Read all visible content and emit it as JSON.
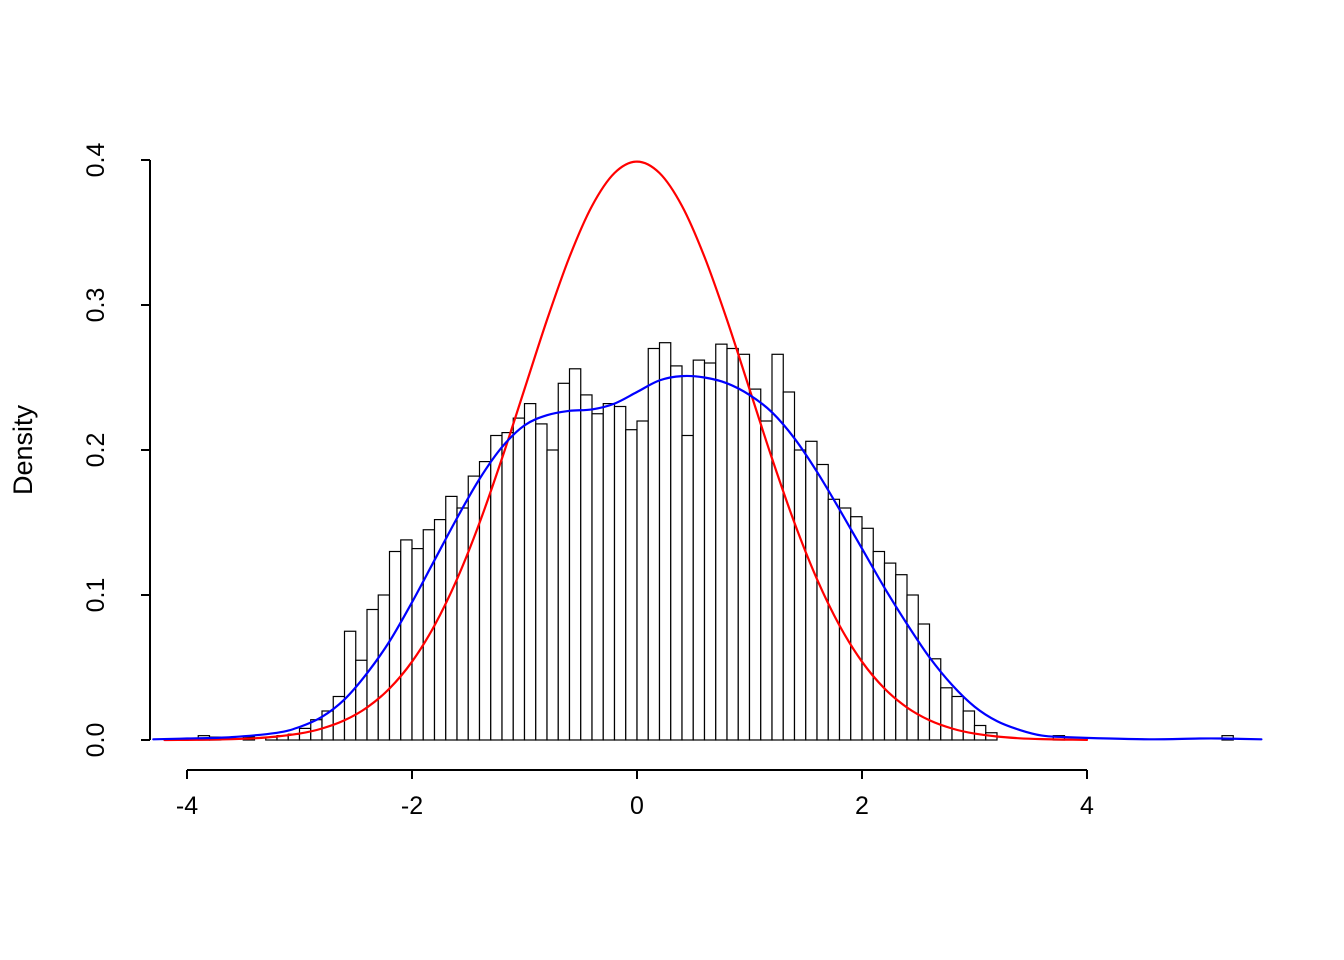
{
  "figure": {
    "background": "#ffffff"
  },
  "chart_data": {
    "type": "histogram+line",
    "title": "",
    "xlabel": "",
    "ylabel": "Density",
    "xlim": [
      -4.35,
      5.6
    ],
    "ylim": [
      0,
      0.4
    ],
    "grid": false,
    "legend": "none",
    "x_ticks": [
      -4,
      -2,
      0,
      2,
      4
    ],
    "x_tick_labels": [
      "-4",
      "-2",
      "0",
      "2",
      "4"
    ],
    "y_ticks": [
      0.0,
      0.1,
      0.2,
      0.3,
      0.4
    ],
    "y_tick_labels": [
      "0.0",
      "0.1",
      "0.2",
      "0.3",
      "0.4"
    ],
    "bin_width": 0.1,
    "histogram": {
      "name": "sample-histogram",
      "bar_fill": "#ffffff",
      "bar_stroke": "#000000",
      "bins": [
        [
          -3.9,
          0.003
        ],
        [
          -3.8,
          0.002
        ],
        [
          -3.5,
          0.002
        ],
        [
          -3.3,
          0.002
        ],
        [
          -3.2,
          0.003
        ],
        [
          -3.1,
          0.004
        ],
        [
          -3.0,
          0.008
        ],
        [
          -2.9,
          0.014
        ],
        [
          -2.8,
          0.02
        ],
        [
          -2.7,
          0.03
        ],
        [
          -2.6,
          0.075
        ],
        [
          -2.5,
          0.055
        ],
        [
          -2.4,
          0.09
        ],
        [
          -2.3,
          0.1
        ],
        [
          -2.2,
          0.13
        ],
        [
          -2.1,
          0.138
        ],
        [
          -2.0,
          0.132
        ],
        [
          -1.9,
          0.145
        ],
        [
          -1.8,
          0.152
        ],
        [
          -1.7,
          0.168
        ],
        [
          -1.6,
          0.16
        ],
        [
          -1.5,
          0.182
        ],
        [
          -1.4,
          0.192
        ],
        [
          -1.3,
          0.21
        ],
        [
          -1.2,
          0.212
        ],
        [
          -1.1,
          0.222
        ],
        [
          -1.0,
          0.232
        ],
        [
          -0.9,
          0.218
        ],
        [
          -0.8,
          0.2
        ],
        [
          -0.7,
          0.246
        ],
        [
          -0.6,
          0.256
        ],
        [
          -0.5,
          0.238
        ],
        [
          -0.4,
          0.225
        ],
        [
          -0.3,
          0.232
        ],
        [
          -0.2,
          0.23
        ],
        [
          -0.1,
          0.214
        ],
        [
          0.0,
          0.22
        ],
        [
          0.1,
          0.27
        ],
        [
          0.2,
          0.274
        ],
        [
          0.3,
          0.258
        ],
        [
          0.4,
          0.21
        ],
        [
          0.5,
          0.262
        ],
        [
          0.6,
          0.26
        ],
        [
          0.7,
          0.273
        ],
        [
          0.8,
          0.27
        ],
        [
          0.9,
          0.266
        ],
        [
          1.0,
          0.242
        ],
        [
          1.1,
          0.22
        ],
        [
          1.2,
          0.266
        ],
        [
          1.3,
          0.24
        ],
        [
          1.4,
          0.2
        ],
        [
          1.5,
          0.206
        ],
        [
          1.6,
          0.19
        ],
        [
          1.7,
          0.166
        ],
        [
          1.8,
          0.16
        ],
        [
          1.9,
          0.154
        ],
        [
          2.0,
          0.146
        ],
        [
          2.1,
          0.13
        ],
        [
          2.2,
          0.122
        ],
        [
          2.3,
          0.114
        ],
        [
          2.4,
          0.1
        ],
        [
          2.5,
          0.08
        ],
        [
          2.6,
          0.056
        ],
        [
          2.7,
          0.036
        ],
        [
          2.8,
          0.03
        ],
        [
          2.9,
          0.02
        ],
        [
          3.0,
          0.01
        ],
        [
          3.1,
          0.005
        ],
        [
          3.7,
          0.003
        ],
        [
          5.2,
          0.003
        ]
      ]
    },
    "series": [
      {
        "name": "normal-density",
        "color": "#ff0000",
        "points": [
          [
            -4.2,
            0.0
          ],
          [
            -4.0,
            0.0001
          ],
          [
            -3.8,
            0.0003
          ],
          [
            -3.6,
            0.0006
          ],
          [
            -3.4,
            0.0012
          ],
          [
            -3.2,
            0.0024
          ],
          [
            -3.0,
            0.0044
          ],
          [
            -2.8,
            0.0079
          ],
          [
            -2.6,
            0.0136
          ],
          [
            -2.4,
            0.0224
          ],
          [
            -2.2,
            0.0355
          ],
          [
            -2.0,
            0.054
          ],
          [
            -1.8,
            0.079
          ],
          [
            -1.6,
            0.1109
          ],
          [
            -1.4,
            0.1497
          ],
          [
            -1.2,
            0.1942
          ],
          [
            -1.0,
            0.242
          ],
          [
            -0.8,
            0.2897
          ],
          [
            -0.6,
            0.3332
          ],
          [
            -0.4,
            0.3683
          ],
          [
            -0.2,
            0.391
          ],
          [
            0.0,
            0.3989
          ],
          [
            0.2,
            0.391
          ],
          [
            0.4,
            0.3683
          ],
          [
            0.6,
            0.3332
          ],
          [
            0.8,
            0.2897
          ],
          [
            1.0,
            0.242
          ],
          [
            1.2,
            0.1942
          ],
          [
            1.4,
            0.1497
          ],
          [
            1.6,
            0.1109
          ],
          [
            1.8,
            0.079
          ],
          [
            2.0,
            0.054
          ],
          [
            2.2,
            0.0355
          ],
          [
            2.4,
            0.0224
          ],
          [
            2.6,
            0.0136
          ],
          [
            2.8,
            0.0079
          ],
          [
            3.0,
            0.0044
          ],
          [
            3.2,
            0.0024
          ],
          [
            3.4,
            0.0012
          ],
          [
            3.6,
            0.0006
          ],
          [
            3.8,
            0.0003
          ],
          [
            4.0,
            0.0001
          ]
        ]
      },
      {
        "name": "kernel-density",
        "color": "#0000ff",
        "points": [
          [
            -4.3,
            0.0005
          ],
          [
            -4.0,
            0.001
          ],
          [
            -3.6,
            0.002
          ],
          [
            -3.2,
            0.005
          ],
          [
            -3.0,
            0.009
          ],
          [
            -2.8,
            0.016
          ],
          [
            -2.6,
            0.028
          ],
          [
            -2.4,
            0.046
          ],
          [
            -2.2,
            0.068
          ],
          [
            -2.0,
            0.095
          ],
          [
            -1.8,
            0.124
          ],
          [
            -1.6,
            0.153
          ],
          [
            -1.4,
            0.18
          ],
          [
            -1.2,
            0.202
          ],
          [
            -1.0,
            0.217
          ],
          [
            -0.8,
            0.224
          ],
          [
            -0.6,
            0.227
          ],
          [
            -0.4,
            0.228
          ],
          [
            -0.2,
            0.232
          ],
          [
            0.0,
            0.24
          ],
          [
            0.2,
            0.248
          ],
          [
            0.4,
            0.251
          ],
          [
            0.6,
            0.25
          ],
          [
            0.8,
            0.246
          ],
          [
            1.0,
            0.238
          ],
          [
            1.2,
            0.226
          ],
          [
            1.4,
            0.208
          ],
          [
            1.6,
            0.185
          ],
          [
            1.8,
            0.159
          ],
          [
            2.0,
            0.132
          ],
          [
            2.2,
            0.105
          ],
          [
            2.4,
            0.08
          ],
          [
            2.6,
            0.057
          ],
          [
            2.8,
            0.038
          ],
          [
            3.0,
            0.023
          ],
          [
            3.2,
            0.013
          ],
          [
            3.4,
            0.007
          ],
          [
            3.6,
            0.003
          ],
          [
            3.8,
            0.002
          ],
          [
            4.2,
            0.001
          ],
          [
            4.6,
            0.0005
          ],
          [
            5.0,
            0.001
          ],
          [
            5.2,
            0.001
          ],
          [
            5.55,
            0.0005
          ]
        ]
      }
    ]
  }
}
